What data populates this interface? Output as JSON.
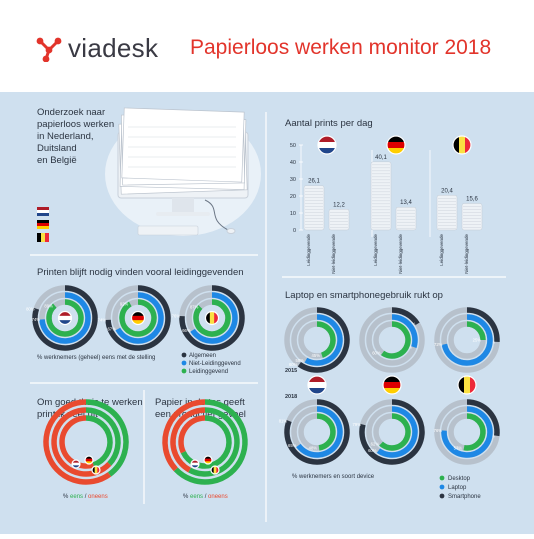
{
  "brand": {
    "name": "viadesk",
    "logo_icon": "network-nodes-icon",
    "logo_color": "#e2342b"
  },
  "title": "Papierloos werken monitor 2018",
  "colors": {
    "background": "#cfe0ef",
    "dark": "#2b3441",
    "blue": "#1e88e5",
    "green": "#2db14f",
    "red": "#e94a2f",
    "ring_bg": "#b7c1cc",
    "accent": "#e2342b"
  },
  "intro": {
    "lines": [
      "Onderzoek naar",
      "papierloos werken",
      "in Nederland,",
      "Duitsland",
      "en België"
    ]
  },
  "flags": {
    "nl": [
      "#ae1c28",
      "#ffffff",
      "#21468b"
    ],
    "de": [
      "#000000",
      "#dd0000",
      "#ffce00"
    ],
    "be": [
      "#000000",
      "#fae042",
      "#ed2939"
    ]
  },
  "prints": {
    "title": "Aantal prints per dag",
    "chart_data": {
      "type": "bar",
      "title": "Aantal prints per dag",
      "ylim": [
        0,
        50
      ],
      "yticks": [
        0,
        10,
        20,
        30,
        40,
        50
      ],
      "groups": [
        {
          "flag": "nl",
          "bars": [
            {
              "label": "Leidinggevende",
              "value": 26.1,
              "value_label": "26,1"
            },
            {
              "label": "Niet-leidinggevende",
              "value": 12.2,
              "value_label": "12,2"
            }
          ]
        },
        {
          "flag": "de",
          "bars": [
            {
              "label": "Leidinggevende",
              "value": 40.1,
              "value_label": "40,1"
            },
            {
              "label": "Niet-leidinggevende",
              "value": 13.4,
              "value_label": "13,4"
            }
          ]
        },
        {
          "flag": "be",
          "bars": [
            {
              "label": "Leidinggevende",
              "value": 20.4,
              "value_label": "20,4"
            },
            {
              "label": "Niet-leidinggevende",
              "value": 15.6,
              "value_label": "15,6"
            }
          ]
        }
      ]
    }
  },
  "printen": {
    "title": "Printen blijft nodig vinden vooral leidinggevenden",
    "caption": "% werknemers (geheel) eens met de stelling",
    "legend": [
      {
        "label": "Algemeen",
        "color": "#2b3441"
      },
      {
        "label": "Niet-Leidinggevend",
        "color": "#1e88e5"
      },
      {
        "label": "Leidinggevend",
        "color": "#2db14f"
      }
    ],
    "chart_data": {
      "type": "radial-bar",
      "series": [
        "Algemeen",
        "Niet-Leidinggevend",
        "Leidinggevend"
      ],
      "groups": [
        {
          "flag": "nl",
          "values": [
            80,
            74,
            89
          ],
          "labels": [
            "80%",
            "74%",
            "89%"
          ]
        },
        {
          "flag": "de",
          "values": [
            74,
            67,
            92
          ],
          "labels": [
            "74%",
            "67%",
            "92%"
          ]
        },
        {
          "flag": "be",
          "values": [
            76,
            66,
            87
          ],
          "labels": [
            "76%",
            "66%",
            "87%"
          ]
        }
      ]
    }
  },
  "laptop": {
    "title": "Laptop en smartphonegebruik rukt op",
    "year_a": "2015",
    "year_b": "2018",
    "caption": "% werknemers en soort device",
    "legend": [
      {
        "label": "Desktop",
        "color": "#2db14f"
      },
      {
        "label": "Laptop",
        "color": "#1e88e5"
      },
      {
        "label": "Smartphone",
        "color": "#2b3441"
      }
    ],
    "chart_data": {
      "type": "radial-bar",
      "series": [
        "Smartphone",
        "Laptop",
        "Desktop"
      ],
      "rows": [
        {
          "year": "2015",
          "groups": [
            {
              "flag": "nl",
              "values": [
                60,
                58,
                45
              ],
              "labels": [
                "60%",
                "58%",
                "45%"
              ]
            },
            {
              "flag": "de",
              "values": [
                16,
                30,
                60
              ],
              "labels": [
                "16%",
                "30%",
                "60%"
              ]
            },
            {
              "flag": "be",
              "values": [
                26,
                72,
                25
              ],
              "labels": [
                "26%",
                "72%",
                "25%"
              ]
            }
          ]
        },
        {
          "year": "2018",
          "groups": [
            {
              "flag": "nl",
              "values": [
                81,
                65,
                48
              ],
              "labels": [
                "81%",
                "65%",
                "48%"
              ]
            },
            {
              "flag": "de",
              "values": [
                79,
                60,
                62
              ],
              "labels": [
                "79%",
                "60%",
                "62%"
              ]
            },
            {
              "flag": "be",
              "values": [
                27,
                76,
                53
              ],
              "labels": [
                "27%",
                "76%",
                "53%"
              ]
            }
          ]
        }
      ]
    }
  },
  "thuis": {
    "title": [
      "Om goed thuis te werken",
      "print ik veel uit"
    ],
    "caption": {
      "prefix": "% ",
      "eens": "eens",
      "sep": " / ",
      "oneens": "oneens"
    },
    "chart_data": {
      "type": "radial-bar",
      "series": [
        "eens",
        "oneens"
      ],
      "groups": [
        {
          "flag": "nl",
          "eens": 40,
          "oneens": 60
        },
        {
          "flag": "de",
          "eens": 37,
          "oneens": 63
        },
        {
          "flag": "be",
          "eens": 45,
          "oneens": 55
        }
      ]
    }
  },
  "tas": {
    "title": [
      "Papier in de tas geeft",
      "een productief gevoel"
    ],
    "caption": {
      "prefix": "% ",
      "eens": "eens",
      "sep": " / ",
      "oneens": "oneens"
    },
    "chart_data": {
      "type": "radial-bar",
      "series": [
        "eens",
        "oneens"
      ],
      "groups": [
        {
          "flag": "nl",
          "eens": 63,
          "oneens": 37
        },
        {
          "flag": "de",
          "eens": 58,
          "oneens": 42
        },
        {
          "flag": "be",
          "eens": 68,
          "oneens": 32
        }
      ]
    }
  }
}
